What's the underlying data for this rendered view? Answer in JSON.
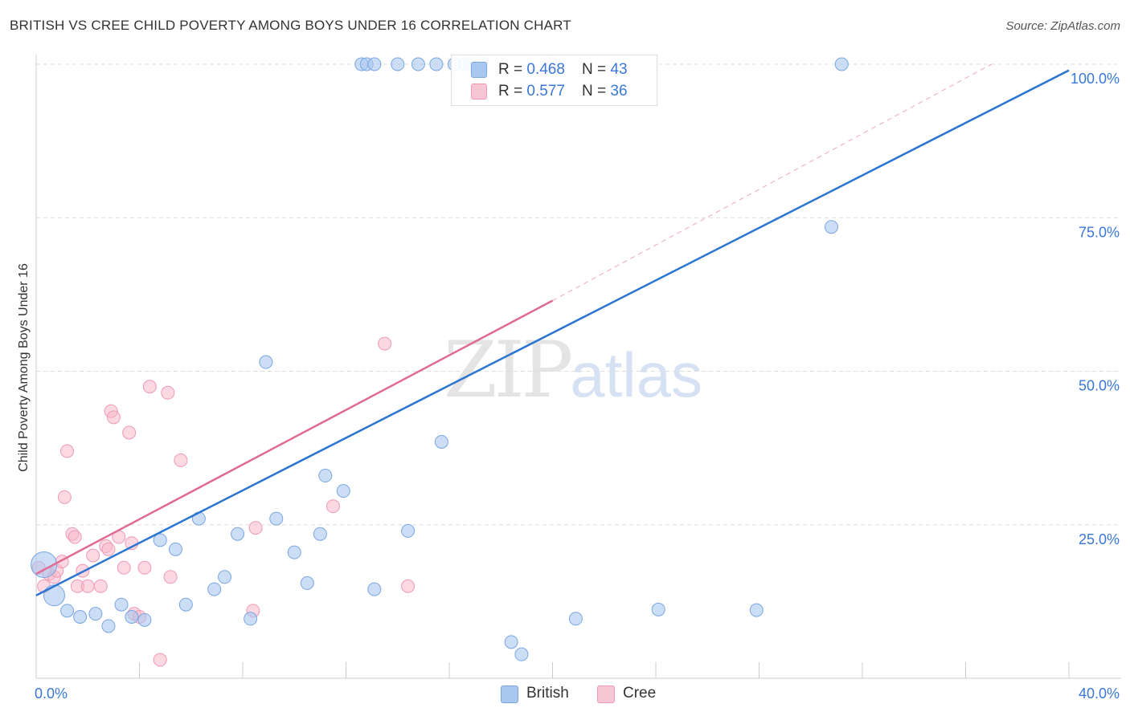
{
  "title": "BRITISH VS CREE CHILD POVERTY AMONG BOYS UNDER 16 CORRELATION CHART",
  "source": "Source: ZipAtlas.com",
  "watermark": {
    "zip": "ZIP",
    "atlas": "atlas"
  },
  "legend": {
    "british": {
      "r_label": "R = ",
      "r_value": "0.468",
      "n_label": "N = ",
      "n_value": "43"
    },
    "cree": {
      "r_label": "R = ",
      "r_value": "0.577",
      "n_label": "N = ",
      "n_value": "36"
    }
  },
  "colors": {
    "british_fill": "#a9c8f0",
    "british_stroke": "#7aa6e0",
    "british_line": "#2b74d0",
    "cree_fill": "#f7b8cb",
    "cree_stroke": "#ee9ab4",
    "cree_line": "#e06a92",
    "grid": "#dddddd",
    "tick_label": "#3a78d8"
  },
  "chart_data": {
    "type": "scatter",
    "title": "BRITISH VS CREE CHILD POVERTY AMONG BOYS UNDER 16 CORRELATION CHART",
    "xlabel": "",
    "ylabel": "Child Poverty Among Boys Under 16",
    "xlim": [
      0,
      40
    ],
    "ylim": [
      0,
      100
    ],
    "x_tick_labels": [
      "0.0%",
      "40.0%"
    ],
    "y_ticks": [
      25,
      50,
      75,
      100
    ],
    "y_tick_labels": [
      "25.0%",
      "50.0%",
      "75.0%",
      "100.0%"
    ],
    "grid": true,
    "legend_position": "top-center",
    "series": [
      {
        "name": "British",
        "points": [
          [
            0.3,
            18.5,
            3
          ],
          [
            0.7,
            13.5,
            2
          ],
          [
            1.2,
            11,
            1
          ],
          [
            1.7,
            10,
            1
          ],
          [
            2.3,
            10.5,
            1
          ],
          [
            2.8,
            8.5,
            1
          ],
          [
            3.3,
            12,
            1
          ],
          [
            3.7,
            10,
            1
          ],
          [
            4.2,
            9.5,
            1
          ],
          [
            4.8,
            22.5,
            1
          ],
          [
            5.4,
            21,
            1
          ],
          [
            5.8,
            12,
            1
          ],
          [
            6.3,
            26,
            1
          ],
          [
            6.9,
            14.5,
            1
          ],
          [
            7.3,
            16.5,
            1
          ],
          [
            7.8,
            23.5,
            1
          ],
          [
            8.3,
            9.7,
            1
          ],
          [
            8.9,
            51.5,
            1
          ],
          [
            9.3,
            26,
            1
          ],
          [
            10,
            20.5,
            1
          ],
          [
            10.5,
            15.5,
            1
          ],
          [
            11,
            23.5,
            1
          ],
          [
            11.2,
            33,
            1
          ],
          [
            11.9,
            30.5,
            1
          ],
          [
            12.6,
            100,
            1
          ],
          [
            12.8,
            100,
            1
          ],
          [
            13.1,
            100,
            1
          ],
          [
            13.1,
            14.5,
            1
          ],
          [
            14,
            100,
            1
          ],
          [
            14.4,
            24,
            1
          ],
          [
            14.8,
            100,
            1
          ],
          [
            15.5,
            100,
            1
          ],
          [
            15.7,
            38.5,
            1
          ],
          [
            16.2,
            100,
            1
          ],
          [
            16.6,
            100,
            1
          ],
          [
            16.8,
            100,
            1
          ],
          [
            17.3,
            100,
            1
          ],
          [
            18.4,
            5.9,
            1
          ],
          [
            18.8,
            3.9,
            1
          ],
          [
            20.9,
            9.7,
            1
          ],
          [
            24.1,
            11.2,
            1
          ],
          [
            27.9,
            11.1,
            1
          ],
          [
            30.8,
            73.5,
            1
          ],
          [
            31.2,
            100,
            1
          ]
        ],
        "trend": [
          [
            0,
            13.5
          ],
          [
            40,
            99
          ]
        ]
      },
      {
        "name": "Cree",
        "points": [
          [
            0.1,
            18,
            1
          ],
          [
            0.3,
            15,
            1
          ],
          [
            0.5,
            17,
            1
          ],
          [
            0.7,
            16.5,
            1
          ],
          [
            0.8,
            17.5,
            1
          ],
          [
            1,
            19,
            1
          ],
          [
            1.1,
            29.5,
            1
          ],
          [
            1.2,
            37,
            1
          ],
          [
            1.4,
            23.5,
            1
          ],
          [
            1.5,
            23,
            1
          ],
          [
            1.6,
            15,
            1
          ],
          [
            1.8,
            17.5,
            1
          ],
          [
            2,
            15,
            1
          ],
          [
            2.2,
            20,
            1
          ],
          [
            2.5,
            15,
            1
          ],
          [
            2.7,
            21.5,
            1
          ],
          [
            2.8,
            21,
            1
          ],
          [
            2.9,
            43.5,
            1
          ],
          [
            3,
            42.5,
            1
          ],
          [
            3.2,
            23,
            1
          ],
          [
            3.4,
            18,
            1
          ],
          [
            3.6,
            40,
            1
          ],
          [
            3.7,
            22,
            1
          ],
          [
            3.8,
            10.5,
            1
          ],
          [
            4,
            10,
            1
          ],
          [
            4.2,
            18,
            1
          ],
          [
            4.4,
            47.5,
            1
          ],
          [
            4.8,
            3,
            1
          ],
          [
            5.1,
            46.5,
            1
          ],
          [
            5.2,
            16.5,
            1
          ],
          [
            5.6,
            35.5,
            1
          ],
          [
            8.4,
            11,
            1
          ],
          [
            8.5,
            24.5,
            1
          ],
          [
            11.5,
            28,
            1
          ],
          [
            13.5,
            54.5,
            1
          ],
          [
            14.4,
            15,
            1
          ],
          [
            20,
            100,
            1
          ]
        ],
        "trend_solid": [
          [
            0,
            17
          ],
          [
            20,
            61.5
          ]
        ],
        "trend_dashed": [
          [
            20,
            61.5
          ],
          [
            37,
            100
          ]
        ]
      }
    ]
  }
}
